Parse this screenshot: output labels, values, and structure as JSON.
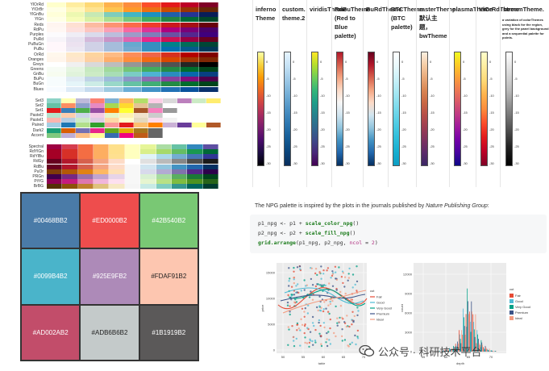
{
  "brewer": {
    "sequential": [
      {
        "name": "YlOrRd",
        "colors": [
          "#FFFFCC",
          "#FFEDA0",
          "#FED976",
          "#FEB24C",
          "#FD8D3C",
          "#FC4E2A",
          "#E31A1C",
          "#BD0026",
          "#800026"
        ]
      },
      {
        "name": "YlOrBr",
        "colors": [
          "#FFFFE5",
          "#FFF7BC",
          "#FEE391",
          "#FEC44F",
          "#FE9929",
          "#EC7014",
          "#CC4C02",
          "#993404",
          "#662506"
        ]
      },
      {
        "name": "YlGnBu",
        "colors": [
          "#FFFFD9",
          "#EDF8B1",
          "#C7E9B4",
          "#7FCDBB",
          "#41B6C4",
          "#1D91C0",
          "#225EA8",
          "#253494",
          "#081D58"
        ]
      },
      {
        "name": "YlGn",
        "colors": [
          "#FFFFE5",
          "#F7FCB9",
          "#D9F0A3",
          "#ADDD8E",
          "#78C679",
          "#41AB5D",
          "#238443",
          "#006837",
          "#004529"
        ]
      },
      {
        "name": "Reds",
        "colors": [
          "#FFF5F0",
          "#FEE0D2",
          "#FCBBA1",
          "#FC9272",
          "#FB6A4A",
          "#EF3B2C",
          "#CB181D",
          "#A50F15",
          "#67000D"
        ]
      },
      {
        "name": "RdPu",
        "colors": [
          "#FFF7F3",
          "#FDE0DD",
          "#FCC5C0",
          "#FA9FB5",
          "#F768A1",
          "#DD3497",
          "#AE017E",
          "#7A0177",
          "#49006A"
        ]
      },
      {
        "name": "Purples",
        "colors": [
          "#FCFBFD",
          "#EFEDF5",
          "#DADAEB",
          "#BCBDDC",
          "#9E9AC8",
          "#807DBA",
          "#6A51A3",
          "#54278F",
          "#3F007D"
        ]
      },
      {
        "name": "PuRd",
        "colors": [
          "#F7F4F9",
          "#E7E1EF",
          "#D4B9DA",
          "#C994C7",
          "#DF65B0",
          "#E7298A",
          "#CE1256",
          "#980043",
          "#67001F"
        ]
      },
      {
        "name": "PuBuGn",
        "colors": [
          "#FFF7FB",
          "#ECE2F0",
          "#D0D1E6",
          "#A6BDDB",
          "#67A9CF",
          "#3690C0",
          "#02818A",
          "#016C59",
          "#014636"
        ]
      },
      {
        "name": "PuBu",
        "colors": [
          "#FFF7FB",
          "#ECE7F2",
          "#D0D1E6",
          "#A6BDDB",
          "#74A9CF",
          "#3690C0",
          "#0570B0",
          "#045A8D",
          "#023858"
        ]
      },
      {
        "name": "OrRd",
        "colors": [
          "#FFF7EC",
          "#FEE8C8",
          "#FDD49E",
          "#FDBB84",
          "#FC8D59",
          "#EF6548",
          "#D7301F",
          "#B30000",
          "#7F0000"
        ]
      },
      {
        "name": "Oranges",
        "colors": [
          "#FFF5EB",
          "#FEE6CE",
          "#FDD0A2",
          "#FDAE6B",
          "#FD8D3C",
          "#F16913",
          "#D94801",
          "#A63603",
          "#7F2704"
        ]
      },
      {
        "name": "Greys",
        "colors": [
          "#FFFFFF",
          "#F0F0F0",
          "#D9D9D9",
          "#BDBDBD",
          "#969696",
          "#737373",
          "#525252",
          "#252525",
          "#000000"
        ]
      },
      {
        "name": "Greens",
        "colors": [
          "#F7FCF5",
          "#E5F5E0",
          "#C7E9C0",
          "#A1D99B",
          "#74C476",
          "#41AB5D",
          "#238B45",
          "#006D2C",
          "#00441B"
        ]
      },
      {
        "name": "GnBu",
        "colors": [
          "#F7FCF0",
          "#E0F3DB",
          "#CCEBC5",
          "#A8DDB5",
          "#7BCCC4",
          "#4EB3D3",
          "#2B8CBE",
          "#0868AC",
          "#084081"
        ]
      },
      {
        "name": "BuPu",
        "colors": [
          "#F7FCFD",
          "#E0ECF4",
          "#BFD3E6",
          "#9EBCDA",
          "#8C96C6",
          "#8C6BB1",
          "#88419D",
          "#810F7C",
          "#4D004B"
        ]
      },
      {
        "name": "BuGn",
        "colors": [
          "#F7FCFD",
          "#E5F5F9",
          "#CCECE6",
          "#99D8C9",
          "#66C2A4",
          "#41AE76",
          "#238B45",
          "#006D2C",
          "#00441B"
        ]
      },
      {
        "name": "Blues",
        "colors": [
          "#F7FBFF",
          "#DEEBF7",
          "#C6DBEF",
          "#9ECAE1",
          "#6BAED6",
          "#4292C6",
          "#2171B5",
          "#08519C",
          "#08306B"
        ]
      }
    ],
    "qualitative": [
      {
        "name": "Set3",
        "colors": [
          "#8DD3C7",
          "#FFFFB3",
          "#BEBADA",
          "#FB8072",
          "#80B1D3",
          "#FDB462",
          "#B3DE69",
          "#FCCDE5",
          "#D9D9D9",
          "#BC80BD",
          "#CCEBC5",
          "#FFED6F"
        ]
      },
      {
        "name": "Set2",
        "colors": [
          "#66C2A5",
          "#FC8D62",
          "#8DA0CB",
          "#E78AC3",
          "#A6D854",
          "#FFD92F",
          "#E5C494",
          "#B3B3B3"
        ]
      },
      {
        "name": "Set1",
        "colors": [
          "#E41A1C",
          "#377EB8",
          "#4DAF4A",
          "#984EA3",
          "#FF7F00",
          "#FFFF33",
          "#A65628",
          "#F781BF",
          "#999999"
        ]
      },
      {
        "name": "Pastel2",
        "colors": [
          "#B3E2CD",
          "#FDCDAC",
          "#CBD5E8",
          "#F4CAE4",
          "#E6F5C9",
          "#FFF2AE",
          "#F1E2CC",
          "#CCCCCC"
        ]
      },
      {
        "name": "Pastel1",
        "colors": [
          "#FBB4AE",
          "#B3CDE3",
          "#CCEBC5",
          "#DECBE4",
          "#FED9A6",
          "#FFFFCC",
          "#E5D8BD",
          "#FDDAEC",
          "#F2F2F2"
        ]
      },
      {
        "name": "Paired",
        "colors": [
          "#A6CEE3",
          "#1F78B4",
          "#B2DF8A",
          "#33A02C",
          "#FB9A99",
          "#E31A1C",
          "#FDBF6F",
          "#FF7F00",
          "#CAB2D6",
          "#6A3D9A",
          "#FFFF99",
          "#B15928"
        ]
      },
      {
        "name": "Dark2",
        "colors": [
          "#1B9E77",
          "#D95F02",
          "#7570B3",
          "#E7298A",
          "#66A61E",
          "#E6AB02",
          "#A6761D",
          "#666666"
        ]
      },
      {
        "name": "Accent",
        "colors": [
          "#7FC97F",
          "#BEAED4",
          "#FDC086",
          "#FFFF99",
          "#386CB0",
          "#F0027F",
          "#BF5B17",
          "#666666"
        ]
      }
    ],
    "diverging": [
      {
        "name": "Spectral",
        "colors": [
          "#9E0142",
          "#D53E4F",
          "#F46D43",
          "#FDAE61",
          "#FEE08B",
          "#FFFFBF",
          "#E6F598",
          "#ABDDA4",
          "#66C2A5",
          "#3288BD",
          "#5E4FA2"
        ]
      },
      {
        "name": "RdYlGn",
        "colors": [
          "#A50026",
          "#D73027",
          "#F46D43",
          "#FDAE61",
          "#FEE08B",
          "#FFFFBF",
          "#D9EF8B",
          "#A6D96A",
          "#66BD63",
          "#1A9850",
          "#006837"
        ]
      },
      {
        "name": "RdYlBu",
        "colors": [
          "#A50026",
          "#D73027",
          "#F46D43",
          "#FDAE61",
          "#FEE090",
          "#FFFFBF",
          "#E0F3F8",
          "#ABD9E9",
          "#74ADD1",
          "#4575B4",
          "#313695"
        ]
      },
      {
        "name": "RdGy",
        "colors": [
          "#67001F",
          "#B2182B",
          "#D6604D",
          "#F4A582",
          "#FDDBC7",
          "#FFFFFF",
          "#E0E0E0",
          "#BABABA",
          "#878787",
          "#4D4D4D",
          "#1A1A1A"
        ]
      },
      {
        "name": "RdBu",
        "colors": [
          "#67001F",
          "#B2182B",
          "#D6604D",
          "#F4A582",
          "#FDDBC7",
          "#F7F7F7",
          "#D1E5F0",
          "#92C5DE",
          "#4393C3",
          "#2166AC",
          "#053061"
        ]
      },
      {
        "name": "PuOr",
        "colors": [
          "#7F3B08",
          "#B35806",
          "#E08214",
          "#FDB863",
          "#FEE0B6",
          "#F7F7F7",
          "#D8DAEB",
          "#B2ABD2",
          "#8073AC",
          "#542788",
          "#2D004B"
        ]
      },
      {
        "name": "PRGn",
        "colors": [
          "#40004B",
          "#762A83",
          "#9970AB",
          "#C2A5CF",
          "#E7D4E8",
          "#F7F7F7",
          "#D9F0D3",
          "#A6DBA0",
          "#5AAE61",
          "#1B7837",
          "#00441B"
        ]
      },
      {
        "name": "PiYG",
        "colors": [
          "#8E0152",
          "#C51B7D",
          "#DE77AE",
          "#F1B6DA",
          "#FDE0EF",
          "#F7F7F7",
          "#E6F5D0",
          "#B8E186",
          "#7FBC41",
          "#4D9221",
          "#276419"
        ]
      },
      {
        "name": "BrBG",
        "colors": [
          "#543005",
          "#8C510A",
          "#BF812D",
          "#DFC27D",
          "#F6E8C3",
          "#F5F5F5",
          "#C7EAE5",
          "#80CDC1",
          "#35978F",
          "#01665E",
          "#003C30"
        ]
      }
    ]
  },
  "npg_grid": [
    {
      "label": "#00468BB2",
      "color": "#4A7BA8"
    },
    {
      "label": "#ED0000B2",
      "color": "#EE4D4D"
    },
    {
      "label": "#42B540B2",
      "color": "#79C874"
    },
    {
      "label": "#0099B4B2",
      "color": "#4AB4CA"
    },
    {
      "label": "#925E9FB2",
      "color": "#AD8AB8"
    },
    {
      "label": "#FDAF91B2",
      "color": "#FDC6B0"
    },
    {
      "label": "#AD002AB2",
      "color": "#C24D6A"
    },
    {
      "label": "#ADB6B6B2",
      "color": "#C4CACA"
    },
    {
      "label": "#1B1919B2",
      "color": "#5B5959"
    }
  ],
  "themes": {
    "ticks": [
      "0",
      "-5",
      "-10",
      "-15",
      "-20",
      "-25",
      "-30"
    ],
    "columns": [
      {
        "title": "inferno Theme",
        "colors": [
          "#FCFFA4",
          "#F7D13D",
          "#FB9B06",
          "#ED6925",
          "#CF4446",
          "#A52C60",
          "#781C6D",
          "#4A0C6B",
          "#1B0C41",
          "#000004"
        ]
      },
      {
        "title": "custom. theme.2",
        "colors": [
          "#E6F4FF",
          "#C4E1F4",
          "#9CC8E6",
          "#73AED6",
          "#4E93C5",
          "#2E78B1",
          "#175F99",
          "#0A467D",
          "#0A2E5C"
        ]
      },
      {
        "title": "viridisTheme",
        "colors": [
          "#FDE725",
          "#B5DE2B",
          "#6ECE58",
          "#35B779",
          "#1F9E89",
          "#26828E",
          "#31688E",
          "#3E4989",
          "#482878",
          "#440154"
        ]
      },
      {
        "title": "RdBuTheme (Red to Blue palette)",
        "colors": [
          "#B2182B",
          "#D6604D",
          "#F4A582",
          "#FDDBC7",
          "#F7F7F7",
          "#D1E5F0",
          "#92C5DE",
          "#4393C3",
          "#2166AC",
          "#053061"
        ]
      },
      {
        "title": "BuRdTheme",
        "colors": [
          "#67001F",
          "#B2182B",
          "#D6604D",
          "#F4A582",
          "#FDDBC7",
          "#D1E5F0",
          "#92C5DE",
          "#4393C3",
          "#2166AC",
          "#053061"
        ]
      },
      {
        "title": "BTCTheme (BTC palette)",
        "colors": [
          "#FFFFFF",
          "#E8F9FC",
          "#C6F0F8",
          "#A0E6F2",
          "#78DAEC",
          "#52CDE4",
          "#30BFDB",
          "#17AFD0",
          "#0C9EC4"
        ]
      },
      {
        "title": "rasterTheme默认主题，bwTheme",
        "colors": [
          "#FCEFE0",
          "#F5CDA6",
          "#E9A979",
          "#D98653",
          "#C96844",
          "#B54E48",
          "#9B3D52",
          "#7C3260",
          "#5B2B6A",
          "#3A2765"
        ]
      },
      {
        "title": "plasmaTheme",
        "colors": [
          "#F0F921",
          "#FDCA26",
          "#FB9F3A",
          "#ED7953",
          "#D8576B",
          "#BD3786",
          "#9C179E",
          "#7201A8",
          "#46039F",
          "#0D0887"
        ]
      },
      {
        "title": "YlOrRdTheme",
        "colors": [
          "#FFFFCC",
          "#FFEDA0",
          "#FED976",
          "#FEB24C",
          "#FD8D3C",
          "#FC4E2A",
          "#E31A1C",
          "#BD0026",
          "#800026"
        ]
      },
      {
        "title": "streamTheme.",
        "colors": [
          "#FFFFFF",
          "#DDDDDD",
          "#BBBBBB",
          "#888888",
          "#555555",
          "#222222",
          "#000000"
        ]
      }
    ],
    "stream_description": "a variation of colorThemes using black for the region, grey for the panel background and a sequential palette for points."
  },
  "blog": {
    "intro_text": "The NPG palette is inspired by the plots in the journals published by ",
    "journal_name": "Nature Publishing Group",
    "intro_end": ":",
    "code_line1_a": "p1_npg <- p1 + ",
    "code_line1_fn": "scale_color_npg",
    "code_line1_b": "()",
    "code_line2_a": "p2_npg <- p2 + ",
    "code_line2_fn": "scale_fill_npg",
    "code_line2_b": "()",
    "code_line3_fn": "grid.arrange",
    "code_line3_a": "(p1_npg, p2_npg, ",
    "code_line3_arg": "ncol",
    "code_line3_b": " = ",
    "code_line3_num": "2",
    "code_line3_c": ")"
  },
  "scatter_plot": {
    "xlabel": "table",
    "ylabel": "price",
    "x_ticks": [
      "50",
      "55",
      "60",
      "65",
      "70"
    ],
    "y_ticks": [
      "0",
      "5000",
      "10000",
      "15000"
    ],
    "legend_title": "cut",
    "legend_items": [
      {
        "label": "Fair",
        "color": "#E64B35"
      },
      {
        "label": "Good",
        "color": "#4DBBD5"
      },
      {
        "label": "Very Good",
        "color": "#00A087"
      },
      {
        "label": "Premium",
        "color": "#3C5488"
      },
      {
        "label": "Ideal",
        "color": "#F39B7F"
      }
    ]
  },
  "hist_plot": {
    "xlabel": "depth",
    "ylabel": "count",
    "x_ticks": [
      "55",
      "60",
      "65",
      "70"
    ],
    "y_ticks": [
      "0",
      "3000",
      "6000",
      "9000",
      "12000"
    ],
    "legend_title": "cut",
    "legend_items": [
      {
        "label": "Fair",
        "color": "#E64B35"
      },
      {
        "label": "Good",
        "color": "#4DBBD5"
      },
      {
        "label": "Very Good",
        "color": "#00A087"
      },
      {
        "label": "Premium",
        "color": "#3C5488"
      },
      {
        "label": "Ideal",
        "color": "#F39B7F"
      }
    ]
  },
  "watermark": {
    "text": "公众号 · 科研技术平台"
  }
}
